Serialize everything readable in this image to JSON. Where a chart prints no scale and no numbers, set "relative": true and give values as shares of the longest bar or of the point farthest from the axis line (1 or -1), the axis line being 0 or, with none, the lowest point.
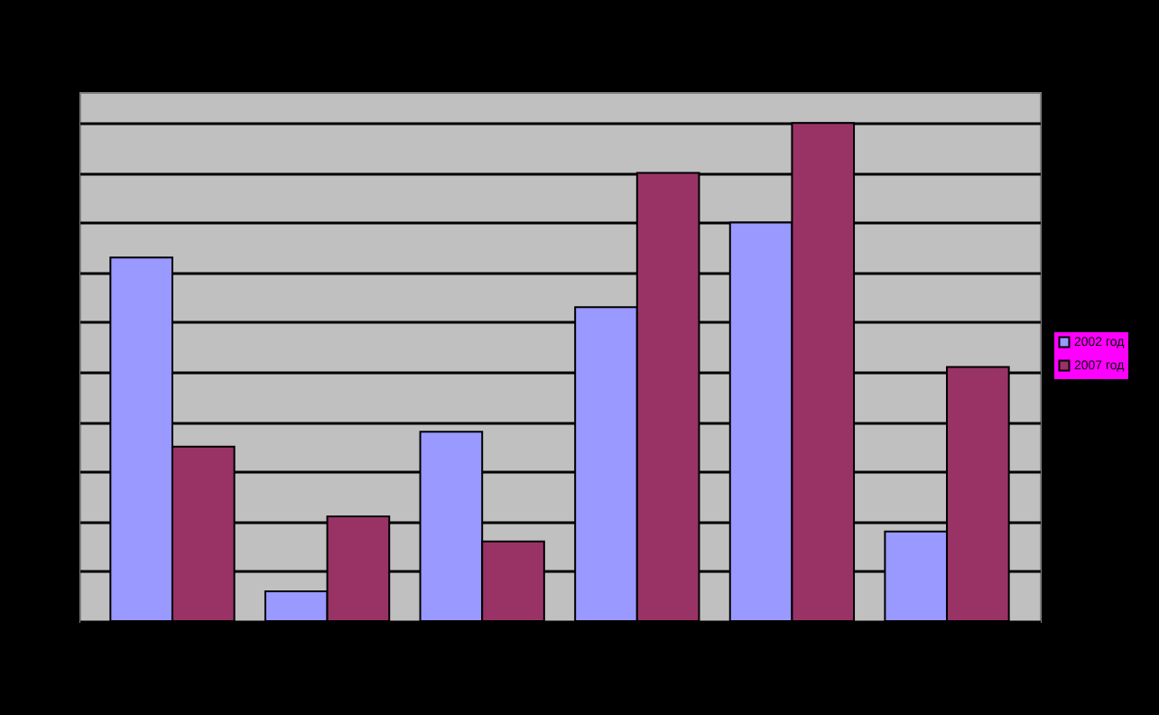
{
  "chart_data": {
    "type": "bar",
    "relative": true,
    "categories": [
      null,
      null,
      null,
      null,
      null,
      null
    ],
    "series": [
      {
        "name": "2002 год",
        "color": "#9999ff",
        "values": [
          0.73,
          0.06,
          0.38,
          0.63,
          0.8,
          0.18
        ]
      },
      {
        "name": "2007 год",
        "color": "#993366",
        "values": [
          0.35,
          0.21,
          0.16,
          0.9,
          1,
          0.51
        ]
      }
    ],
    "grid": "y",
    "legend": "right"
  }
}
